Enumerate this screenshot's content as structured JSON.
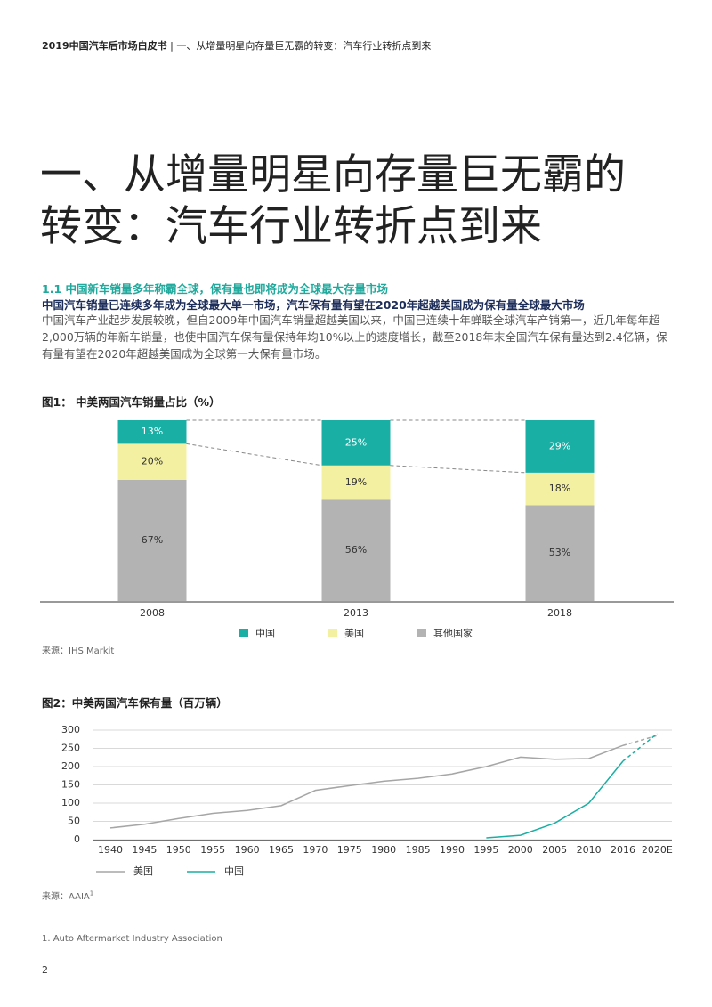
{
  "header": {
    "book": "2019中国汽车后市场白皮书",
    "chapter": "| 一、从增量明星向存量巨无霸的转变：汽车行业转折点到来"
  },
  "title_lines": [
    "一、从增量明星向存量巨无霸的",
    "转变：汽车行业转折点到来"
  ],
  "section_heading": "1.1 中国新车销量多年称霸全球，保有量也即将成为全球最大存量市场",
  "subheading": "中国汽车销量已连续多年成为全球最大单一市场，汽车保有量有望在2020年超越美国成为保有量全球最大市场",
  "body": "中国汽车产业起步发展较晚，但自2009年中国汽车销量超越美国以来，中国已连续十年蝉联全球汽车产销第一，近几年每年超2,000万辆的年新车销量，也使中国汽车保有量保持年均10%以上的速度增长，截至2018年末全国汽车保有量达到2.4亿辆，保有量有望在2020年超越美国成为全球第一大保有量市场。",
  "chart_data": [
    {
      "type": "stacked_bar",
      "title": "图1： 中美两国汽车销量占比（%）",
      "categories": [
        "2008",
        "2013",
        "2018"
      ],
      "series": [
        {
          "name": "中国",
          "color": "#1aafa4",
          "label_color": "#ffffff",
          "values": [
            13,
            25,
            29
          ],
          "value_labels": [
            "13%",
            "25%",
            "29%"
          ]
        },
        {
          "name": "美国",
          "color": "#f3f0a2",
          "label_color": "#333333",
          "values": [
            20,
            19,
            18
          ],
          "value_labels": [
            "20%",
            "19%",
            "18%"
          ]
        },
        {
          "name": "其他国家",
          "color": "#b3b3b3",
          "label_color": "#333333",
          "values": [
            67,
            56,
            53
          ],
          "value_labels": [
            "67%",
            "56%",
            "53%"
          ]
        }
      ],
      "ylim": [
        0,
        100
      ],
      "source": "来源：IHS Markit"
    },
    {
      "type": "line",
      "title": "图2：中美两国汽车保有量（百万辆）",
      "categories": [
        "1940",
        "1945",
        "1950",
        "1955",
        "1960",
        "1965",
        "1970",
        "1975",
        "1980",
        "1985",
        "1990",
        "1995",
        "2000",
        "2005",
        "2010",
        "2016",
        "2020E"
      ],
      "series": [
        {
          "name": "美国",
          "color": "#a6a6a6",
          "values": [
            32,
            42,
            58,
            72,
            80,
            93,
            135,
            148,
            160,
            168,
            180,
            200,
            226,
            220,
            222,
            258,
            285
          ]
        },
        {
          "name": "中国",
          "color": "#1aafa4",
          "values": [
            null,
            null,
            null,
            null,
            null,
            null,
            null,
            null,
            null,
            null,
            null,
            5,
            12,
            45,
            100,
            215,
            290
          ]
        }
      ],
      "dashed_last_segment": true,
      "grid": true,
      "ylim": [
        0,
        300
      ],
      "yticks": [
        0,
        50,
        100,
        150,
        200,
        250,
        300
      ],
      "source": "来源：AAIA",
      "source_note_mark": "1"
    }
  ],
  "footnote": "1. Auto Aftermarket Industry Association",
  "page_number": "2"
}
